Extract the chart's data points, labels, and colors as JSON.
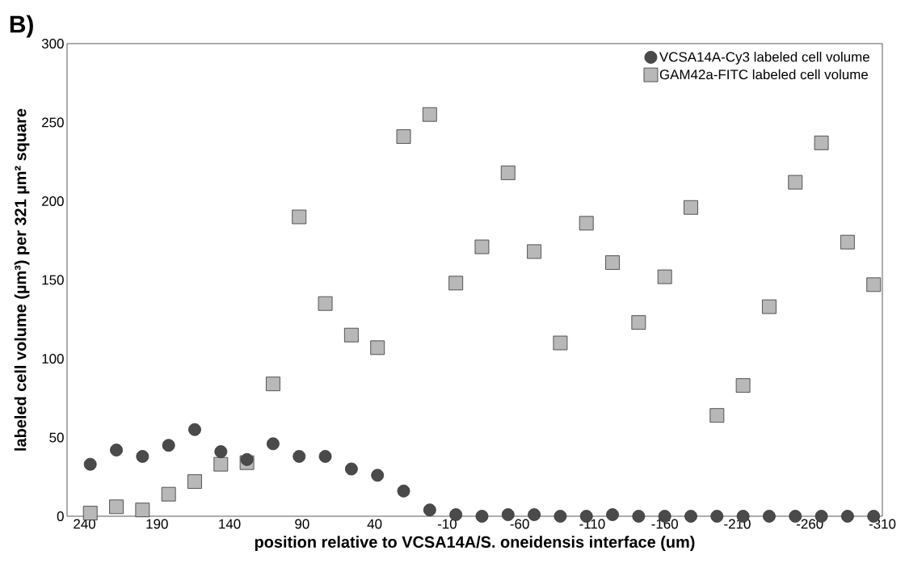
{
  "chart_data": {
    "type": "scatter",
    "title": "B)",
    "xlabel": "position relative to VCSA14A/S. oneidensis interface (um)",
    "ylabel": "labeled cell volume (µm³) per 321 µm² square",
    "x": [
      236,
      218,
      200,
      182,
      164,
      146,
      128,
      110,
      92,
      74,
      56,
      38,
      20,
      2,
      -16,
      -34,
      -52,
      -70,
      -88,
      -106,
      -124,
      -142,
      -160,
      -178,
      -196,
      -214,
      -232,
      -250,
      -268,
      -286,
      -304
    ],
    "series": [
      {
        "name": "VCSA14A-Cy3 labeled cell volume",
        "color": "#4a4a4a",
        "marker": "circle",
        "values": [
          33,
          42,
          38,
          45,
          55,
          41,
          36,
          46,
          38,
          38,
          30,
          26,
          16,
          4,
          1,
          0,
          1,
          1,
          0,
          0,
          1,
          0,
          0,
          0,
          0,
          0,
          0,
          0,
          0,
          0,
          0
        ]
      },
      {
        "name": "GAM42a-FITC labeled cell volume",
        "color": "#b8b8b8",
        "marker": "square",
        "values": [
          2,
          6,
          4,
          14,
          22,
          33,
          34,
          84,
          190,
          135,
          115,
          107,
          241,
          255,
          148,
          171,
          218,
          168,
          110,
          186,
          161,
          123,
          152,
          196,
          64,
          83,
          133,
          212,
          237,
          174,
          147
        ]
      }
    ],
    "xlim": [
      252,
      -310
    ],
    "xticks": [
      240,
      190,
      140,
      90,
      40,
      -10,
      -60,
      -110,
      -160,
      -210,
      -260,
      -310
    ],
    "ylim": [
      0,
      300
    ],
    "yticks": [
      0,
      50,
      100,
      150,
      200,
      250,
      300
    ],
    "grid": false,
    "legend": "top right"
  }
}
